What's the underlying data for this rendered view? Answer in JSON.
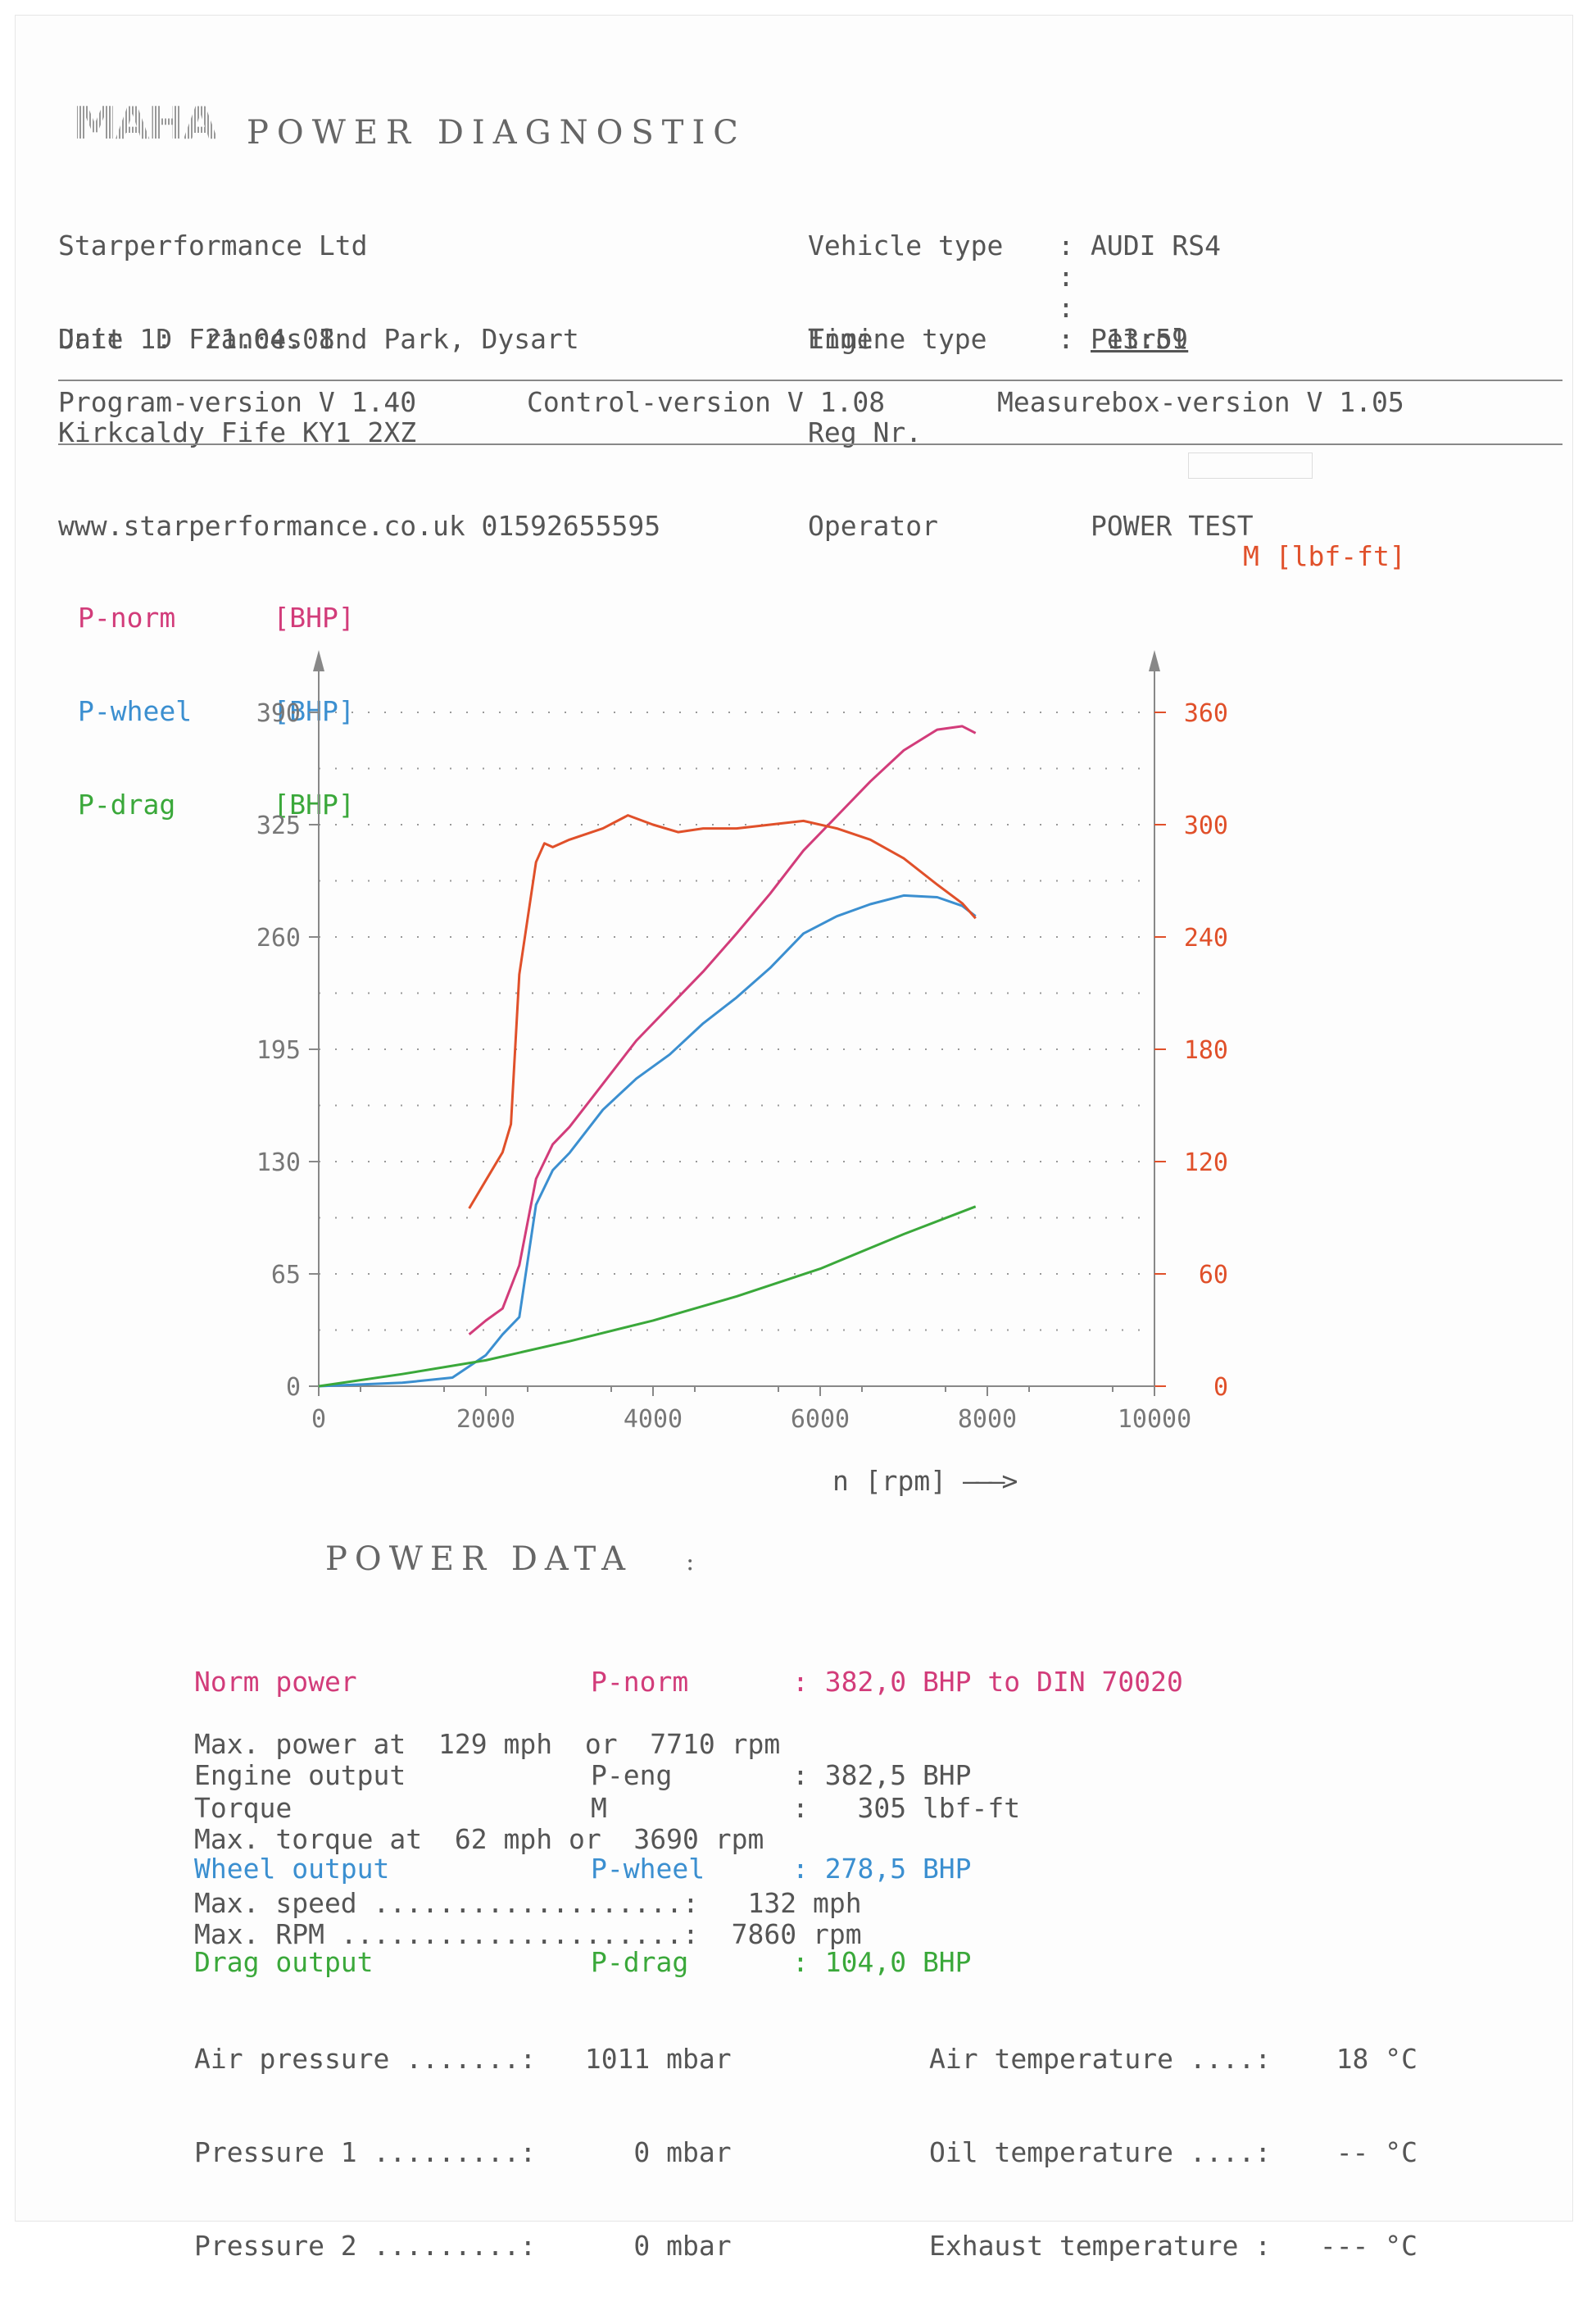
{
  "header": {
    "title": "POWER DIAGNOSTIC",
    "company": [
      "Starperformance Ltd",
      "Unit 1D Frances Ind Park, Dysart",
      "Kirkcaldy Fife KY1 2XZ",
      "www.starperformance.co.uk 01592655595"
    ],
    "vehicle_type_label": "Vehicle type",
    "vehicle_type": "AUDI RS4",
    "engine_type_label": "Engine type",
    "engine_type": "Petrol",
    "reg_label": "Reg Nr.",
    "operator_label": "Operator",
    "operator": "POWER TEST",
    "date_label": "Date",
    "date": "21.04.08",
    "time_label": "Time",
    "time": "13:59",
    "program_version": "Program-version V 1.40",
    "control_version": "Control-version V 1.08",
    "measurebox_version": "Measurebox-version V 1.05"
  },
  "legend": {
    "pnorm": "P-norm",
    "pwheel": "P-wheel",
    "pdrag": "P-drag",
    "unit": "[BHP]",
    "torque_axis": "M [lbf-ft]"
  },
  "chart_data": {
    "type": "line",
    "xlabel": "n [rpm]",
    "xlim": [
      0,
      10000
    ],
    "xticks": [
      "0",
      "2000",
      "4000",
      "6000",
      "8000",
      "10000"
    ],
    "ylim_left": [
      0,
      390
    ],
    "yticks_left": [
      "0",
      "65",
      "130",
      "195",
      "260",
      "325",
      "390"
    ],
    "ylim_right": [
      0,
      360
    ],
    "yticks_right": [
      "0",
      "60",
      "120",
      "180",
      "240",
      "300",
      "360"
    ],
    "grid": true,
    "colors": {
      "pnorm": "#d23c7a",
      "pwheel": "#3b8fd0",
      "pdrag": "#3aa83a",
      "torque": "#e0502a"
    },
    "series": [
      {
        "name": "P-norm",
        "axis": "left",
        "color": "#d23c7a",
        "x": [
          1800,
          2000,
          2200,
          2400,
          2600,
          2800,
          3000,
          3400,
          3800,
          4200,
          4600,
          5000,
          5400,
          5800,
          6200,
          6600,
          7000,
          7400,
          7700,
          7860
        ],
        "y": [
          30,
          38,
          45,
          70,
          120,
          140,
          150,
          175,
          200,
          220,
          240,
          262,
          285,
          310,
          330,
          350,
          368,
          380,
          382,
          378
        ]
      },
      {
        "name": "P-wheel",
        "axis": "left",
        "color": "#3b8fd0",
        "x": [
          0,
          1000,
          1600,
          2000,
          2200,
          2400,
          2600,
          2800,
          3000,
          3400,
          3800,
          4200,
          4600,
          5000,
          5400,
          5800,
          6200,
          6600,
          7000,
          7400,
          7700,
          7860
        ],
        "y": [
          0,
          2,
          5,
          18,
          30,
          40,
          105,
          125,
          135,
          160,
          178,
          192,
          210,
          225,
          242,
          262,
          272,
          279,
          284,
          283,
          278,
          272
        ]
      },
      {
        "name": "P-drag",
        "axis": "left",
        "color": "#3aa83a",
        "x": [
          0,
          1000,
          2000,
          3000,
          4000,
          5000,
          6000,
          7000,
          7860
        ],
        "y": [
          0,
          7,
          15,
          26,
          38,
          52,
          68,
          88,
          104
        ]
      },
      {
        "name": "M",
        "axis": "right",
        "color": "#e0502a",
        "x": [
          1800,
          2000,
          2200,
          2300,
          2400,
          2500,
          2600,
          2700,
          2800,
          3000,
          3200,
          3400,
          3700,
          4000,
          4300,
          4600,
          5000,
          5400,
          5800,
          6200,
          6600,
          7000,
          7400,
          7700,
          7860
        ],
        "y": [
          95,
          110,
          125,
          140,
          220,
          250,
          280,
          290,
          288,
          292,
          295,
          298,
          305,
          300,
          296,
          298,
          298,
          300,
          302,
          298,
          292,
          282,
          268,
          258,
          250
        ]
      }
    ]
  },
  "power_data": {
    "title": "POWER DATA",
    "norm_label": "Norm power",
    "norm_sym": "P-norm",
    "norm_val": ": 382,0 BHP to DIN 70020",
    "eng_label": "Engine output",
    "eng_sym": "P-eng",
    "eng_val": ": 382,5 BHP",
    "wheel_label": "Wheel output",
    "wheel_sym": "P-wheel",
    "wheel_val": ": 278,5 BHP",
    "drag_label": "Drag output",
    "drag_sym": "P-drag",
    "drag_val": ": 104,0 BHP",
    "max_power": "Max. power at  129 mph  or  7710 rpm",
    "torque_label": "Torque",
    "torque_sym": "M",
    "torque_val": ":   305 lbf-ft",
    "max_torque": "Max. torque at  62 mph or  3690 rpm",
    "max_speed": "Max. speed ...................:   132 mph",
    "max_rpm": "Max. RPM .....................:  7860 rpm",
    "air_pressure": "Air pressure .......:   1011 mbar",
    "pressure1": "Pressure 1 .........:      0 mbar",
    "pressure2": "Pressure 2 .........:      0 mbar",
    "air_temp": "Air temperature ....:    18 °C",
    "oil_temp": "Oil temperature ....:    -- °C",
    "exhaust_temp": "Exhaust temperature :   --- °C"
  }
}
